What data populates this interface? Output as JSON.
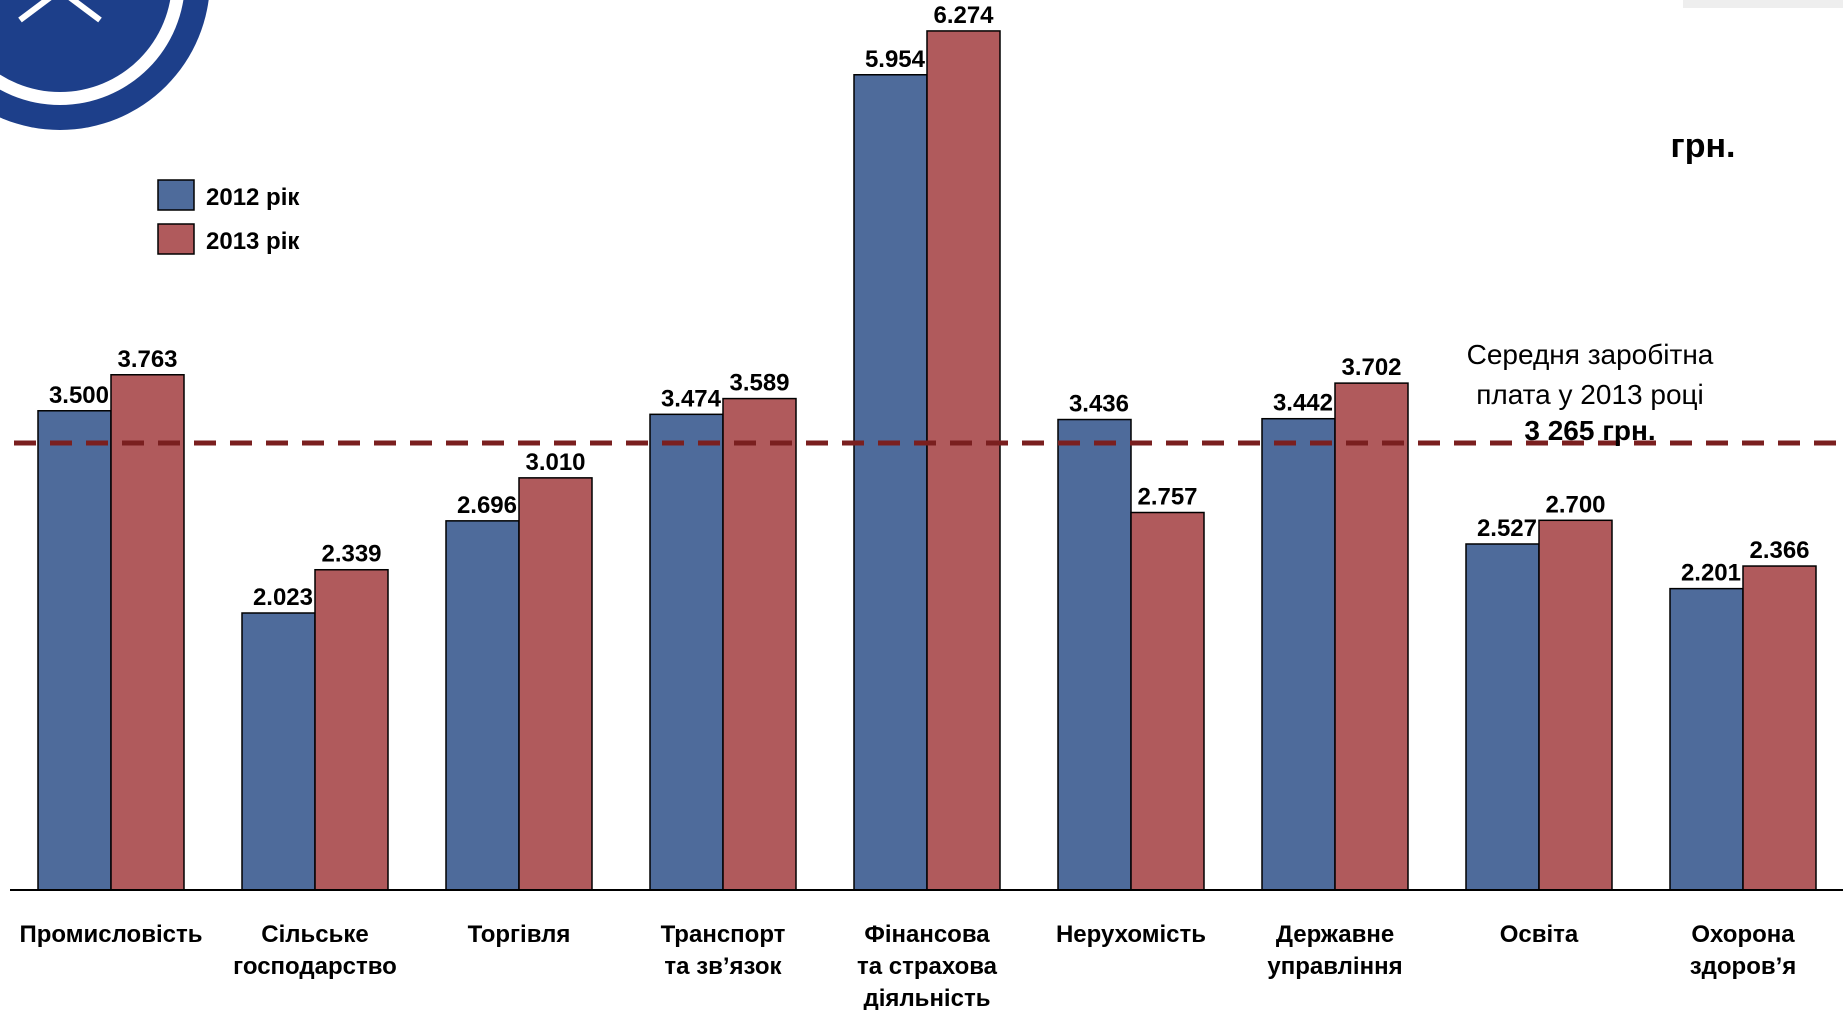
{
  "chart_data": {
    "type": "bar",
    "categories": [
      [
        "Промисловість"
      ],
      [
        "Сільське",
        "господарство"
      ],
      [
        "Торгівля"
      ],
      [
        "Транспорт",
        "та зв’язок"
      ],
      [
        "Фінансова",
        "та страхова",
        "діяльність"
      ],
      [
        "Нерухомість"
      ],
      [
        "Державне",
        "управління"
      ],
      [
        "Освіта"
      ],
      [
        "Охорона",
        "здоров’я"
      ]
    ],
    "series": [
      {
        "name": "2012 рік",
        "color": "#4e6b9b",
        "values": [
          3500,
          2023,
          2696,
          3474,
          5954,
          3436,
          3442,
          2527,
          2201
        ],
        "labels": [
          "3.500",
          "2.023",
          "2.696",
          "3.474",
          "5.954",
          "3.436",
          "3.442",
          "2.527",
          "2.201"
        ]
      },
      {
        "name": "2013 рік",
        "color": "#b05a5c",
        "values": [
          3763,
          2339,
          3010,
          3589,
          6274,
          2757,
          3702,
          2700,
          2366
        ],
        "labels": [
          "3.763",
          "2.339",
          "3.010",
          "3.589",
          "6.274",
          "2.757",
          "3.702",
          "2.700",
          "2.366"
        ]
      }
    ],
    "ylim": [
      0,
      6500
    ],
    "unit_label": "грн.",
    "reference_line": {
      "value": 3265,
      "color": "#7a1f1f",
      "label_lines": [
        "Середня заробітна",
        "плата у 2013 році"
      ],
      "label_value": "3 265 грн."
    },
    "legend": {
      "position": "top-left"
    }
  }
}
